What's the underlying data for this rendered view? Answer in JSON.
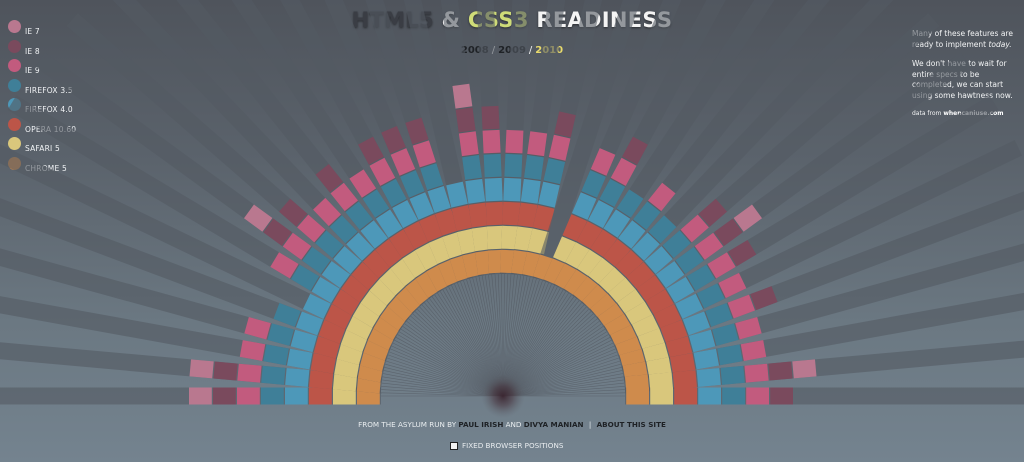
{
  "title": {
    "html5": "HTML5",
    "amp": "&",
    "css3": "CSS3",
    "readiness": "READINESS"
  },
  "years": [
    "2008",
    "2009",
    "2010"
  ],
  "year_separator": "/",
  "legend": [
    {
      "label": "IE 7",
      "color": "#b9788f"
    },
    {
      "label": "IE 8",
      "color": "#7a4a5d"
    },
    {
      "label": "IE 9",
      "color": "#c25b7e"
    },
    {
      "label": "FIREFOX 3.5",
      "color": "#3f7f98"
    },
    {
      "label": "FIREFOX 4.0",
      "color": "#4d98b9"
    },
    {
      "label": "OPERA 10.60",
      "color": "#bc5548"
    },
    {
      "label": "SAFARI 5",
      "color": "#d9c77c"
    },
    {
      "label": "CHROME 5",
      "color": "#cf8b4c"
    }
  ],
  "notes": {
    "p1_a": "Many of these features are ready to implement",
    "p1_b": "today.",
    "p2": "We don't have to wait for entire specs to be completed, we can start using some hawtness now.",
    "source_prefix": "data from",
    "source_link": "whencaniuse.com"
  },
  "footer": {
    "prefix": "FROM THE ASYLUM RUN BY",
    "author1": "PAUL IRISH",
    "and": "AND",
    "author2": "DIVYA MANIAN",
    "sep": "|",
    "about": "ABOUT THIS SITE"
  },
  "toggle_label": "FIXED BROWSER POSITIONS",
  "colors": {
    "track": "#545a62",
    "ie7": "#b9788f",
    "ie8": "#7a4a5d",
    "ie9": "#c25b7e",
    "firefox35": "#3f7f98",
    "firefox40": "#4d98b9",
    "opera": "#bc5548",
    "safari": "#d9c77c",
    "chrome": "#cf8b4c"
  },
  "chart_data": {
    "type": "radial-bar",
    "browser_order": [
      "CHROME 5",
      "SAFARI 5",
      "OPERA 10.60",
      "FIREFOX 4.0",
      "FIREFOX 3.5",
      "IE 9",
      "IE 8",
      "IE 7"
    ],
    "features": [
      {
        "support": [
          "chrome",
          "safari",
          "opera",
          "firefox40",
          "firefox35",
          "ie9",
          "ie8",
          "ie7"
        ]
      },
      {
        "support": [
          "chrome",
          "safari",
          "opera",
          "firefox40",
          "firefox35",
          "ie9",
          "ie8",
          "ie7"
        ]
      },
      {
        "support": [
          "chrome",
          "safari",
          "opera",
          "firefox40",
          "firefox35",
          "ie9"
        ]
      },
      {
        "support": [
          "chrome",
          "safari",
          "opera",
          "firefox40",
          "firefox35",
          "ie9"
        ]
      },
      {
        "support": [
          "chrome",
          "safari",
          "opera",
          "firefox40",
          "firefox35"
        ]
      },
      {
        "support": [
          "chrome",
          "safari",
          "opera",
          "firefox40"
        ]
      },
      {
        "support": [
          "chrome",
          "safari",
          "opera",
          "firefox40",
          "firefox35",
          "ie9"
        ]
      },
      {
        "support": [
          "chrome",
          "safari",
          "opera",
          "firefox40",
          "firefox35",
          "ie9",
          "ie8",
          "ie7"
        ]
      },
      {
        "support": [
          "chrome",
          "safari",
          "opera",
          "firefox40",
          "firefox35",
          "ie9",
          "ie8"
        ]
      },
      {
        "support": [
          "chrome",
          "safari",
          "opera",
          "firefox40",
          "firefox35",
          "ie9"
        ]
      },
      {
        "support": [
          "chrome",
          "safari",
          "opera",
          "firefox40",
          "firefox35",
          "ie9",
          "ie8"
        ]
      },
      {
        "support": [
          "chrome",
          "safari",
          "opera",
          "firefox40",
          "firefox35",
          "ie9"
        ]
      },
      {
        "support": [
          "chrome",
          "safari",
          "opera",
          "firefox40",
          "firefox35",
          "ie9",
          "ie8"
        ]
      },
      {
        "support": [
          "chrome",
          "safari",
          "opera",
          "firefox40",
          "firefox35",
          "ie9",
          "ie8"
        ]
      },
      {
        "support": [
          "chrome",
          "safari",
          "opera",
          "firefox40",
          "firefox35",
          "ie9",
          "ie8"
        ]
      },
      {
        "support": [
          "chrome",
          "safari",
          "opera",
          "firefox40"
        ]
      },
      {
        "support": [
          "chrome",
          "safari",
          "opera",
          "firefox40",
          "firefox35",
          "ie9",
          "ie8",
          "ie7"
        ]
      },
      {
        "support": [
          "chrome",
          "safari",
          "opera",
          "firefox40",
          "firefox35",
          "ie9",
          "ie8"
        ]
      },
      {
        "support": [
          "chrome",
          "safari",
          "opera",
          "firefox40",
          "firefox35",
          "ie9"
        ]
      },
      {
        "support": [
          "chrome",
          "safari",
          "opera",
          "firefox40",
          "firefox35",
          "ie9"
        ]
      },
      {
        "support": [
          "chrome",
          "safari",
          "opera",
          "firefox40",
          "firefox35",
          "ie9",
          "ie8"
        ]
      },
      {
        "support": [
          "chrome"
        ]
      },
      {
        "support": [
          "chrome",
          "safari",
          "opera",
          "firefox40",
          "firefox35",
          "ie9"
        ]
      },
      {
        "support": [
          "chrome",
          "safari",
          "opera",
          "firefox40",
          "firefox35",
          "ie9",
          "ie8"
        ]
      },
      {
        "support": [
          "chrome",
          "safari",
          "opera",
          "firefox40",
          "firefox35"
        ]
      },
      {
        "support": [
          "chrome",
          "safari",
          "opera",
          "firefox40",
          "firefox35",
          "ie9"
        ]
      },
      {
        "support": [
          "chrome",
          "safari",
          "opera",
          "firefox40",
          "firefox35"
        ]
      },
      {
        "support": [
          "chrome",
          "safari",
          "opera",
          "firefox40",
          "firefox35",
          "ie9",
          "ie8"
        ]
      },
      {
        "support": [
          "chrome",
          "safari",
          "opera",
          "firefox40",
          "firefox35",
          "ie9",
          "ie8",
          "ie7"
        ]
      },
      {
        "support": [
          "chrome",
          "safari",
          "opera",
          "firefox40",
          "firefox35",
          "ie9",
          "ie8"
        ]
      },
      {
        "support": [
          "chrome",
          "safari",
          "opera",
          "firefox40",
          "firefox35",
          "ie9"
        ]
      },
      {
        "support": [
          "chrome",
          "safari",
          "opera",
          "firefox40",
          "firefox35",
          "ie9",
          "ie8"
        ]
      },
      {
        "support": [
          "chrome",
          "safari",
          "opera",
          "firefox40",
          "firefox35",
          "ie9"
        ]
      },
      {
        "support": [
          "chrome",
          "safari",
          "opera",
          "firefox40",
          "firefox35",
          "ie9"
        ]
      },
      {
        "support": [
          "chrome",
          "safari",
          "opera",
          "firefox40",
          "firefox35",
          "ie9",
          "ie8",
          "ie7"
        ]
      },
      {
        "support": [
          "chrome",
          "safari",
          "opera",
          "firefox40",
          "firefox35",
          "ie9",
          "ie8"
        ]
      }
    ]
  }
}
